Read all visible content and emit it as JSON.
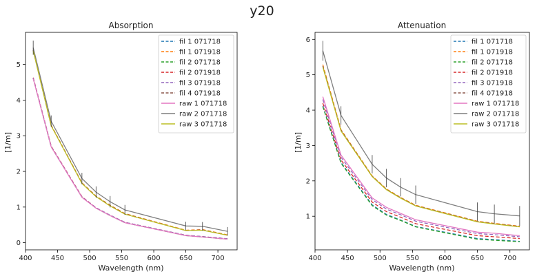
{
  "figure": {
    "title": "y20"
  },
  "legend_labels": [
    "fil 1 071718",
    "fil 1 071918",
    "fil 2 071718",
    "fil 2 071918",
    "fil 3 071918",
    "fil 4 071918",
    "raw 1 071718",
    "raw 2 071718",
    "raw 3 071718"
  ],
  "legend_colors": [
    "#1f77b4",
    "#ff7f0e",
    "#2ca02c",
    "#d62728",
    "#9467bd",
    "#8c564b",
    "#e377c2",
    "#7f7f7f",
    "#bcbd22"
  ],
  "legend_dashed": [
    true,
    true,
    true,
    true,
    true,
    true,
    false,
    false,
    false
  ],
  "chart_data": [
    {
      "type": "line",
      "title": "Absorption",
      "xlabel": "Wavelength (nm)",
      "ylabel": "[1/m]",
      "xlim": [
        400,
        730
      ],
      "ylim": [
        -0.2,
        5.9
      ],
      "xticks": [
        400,
        450,
        500,
        550,
        600,
        650,
        700
      ],
      "yticks": [
        0,
        1,
        2,
        3,
        4,
        5
      ],
      "legend_position": "top-right",
      "x": [
        412,
        440,
        488,
        510,
        532,
        555,
        650,
        676,
        715
      ],
      "series": [
        {
          "name": "fil 1 071718",
          "values": [
            4.62,
            2.7,
            1.28,
            0.98,
            0.77,
            0.57,
            0.21,
            0.17,
            0.11
          ]
        },
        {
          "name": "fil 1 071918",
          "values": [
            5.41,
            3.3,
            1.68,
            1.31,
            1.05,
            0.82,
            0.35,
            0.37,
            0.22
          ]
        },
        {
          "name": "fil 2 071718",
          "values": [
            4.61,
            2.69,
            1.28,
            0.97,
            0.76,
            0.56,
            0.2,
            0.16,
            0.1
          ]
        },
        {
          "name": "fil 2 071918",
          "values": [
            4.63,
            2.71,
            1.29,
            0.98,
            0.77,
            0.57,
            0.21,
            0.17,
            0.11
          ]
        },
        {
          "name": "fil 3 071918",
          "values": [
            4.62,
            2.7,
            1.28,
            0.98,
            0.77,
            0.57,
            0.21,
            0.17,
            0.11
          ]
        },
        {
          "name": "fil 4 071918",
          "values": [
            5.4,
            3.29,
            1.67,
            1.3,
            1.04,
            0.81,
            0.34,
            0.36,
            0.21
          ]
        },
        {
          "name": "raw 1 071718",
          "values": [
            4.6,
            2.69,
            1.27,
            0.97,
            0.76,
            0.56,
            0.2,
            0.16,
            0.1
          ]
        },
        {
          "name": "raw 2 071718",
          "values": [
            5.47,
            3.41,
            1.8,
            1.42,
            1.15,
            0.92,
            0.47,
            0.46,
            0.32
          ]
        },
        {
          "name": "raw 3 071718",
          "values": [
            5.38,
            3.28,
            1.66,
            1.29,
            1.03,
            0.8,
            0.34,
            0.35,
            0.21
          ]
        }
      ],
      "errorbars": {
        "x": [
          412,
          440,
          488,
          510,
          532,
          555,
          650,
          676,
          715
        ],
        "center": [
          5.47,
          3.41,
          1.8,
          1.42,
          1.15,
          0.92,
          0.47,
          0.46,
          0.32
        ],
        "halfwidth": [
          0.2,
          0.16,
          0.16,
          0.16,
          0.16,
          0.14,
          0.12,
          0.12,
          0.12
        ]
      }
    },
    {
      "type": "line",
      "title": "Attenuation",
      "xlabel": "Wavelength (nm)",
      "ylabel": "[1/m]",
      "xlim": [
        400,
        730
      ],
      "ylim": [
        0.05,
        6.2
      ],
      "xticks": [
        400,
        450,
        500,
        550,
        600,
        650,
        700
      ],
      "yticks": [
        1,
        2,
        3,
        4,
        5,
        6
      ],
      "legend_position": "top-right",
      "x": [
        412,
        440,
        488,
        510,
        532,
        555,
        650,
        676,
        715
      ],
      "series": [
        {
          "name": "fil 1 071718",
          "values": [
            4.12,
            2.52,
            1.32,
            1.05,
            0.89,
            0.71,
            0.37,
            0.34,
            0.29
          ]
        },
        {
          "name": "fil 1 071918",
          "values": [
            5.29,
            3.45,
            2.14,
            1.77,
            1.53,
            1.31,
            0.86,
            0.8,
            0.72
          ]
        },
        {
          "name": "fil 2 071718",
          "values": [
            4.1,
            2.5,
            1.3,
            1.03,
            0.88,
            0.7,
            0.35,
            0.32,
            0.28
          ]
        },
        {
          "name": "fil 2 071918",
          "values": [
            4.2,
            2.59,
            1.4,
            1.13,
            0.97,
            0.79,
            0.45,
            0.42,
            0.37
          ]
        },
        {
          "name": "fil 3 071918",
          "values": [
            4.3,
            2.67,
            1.47,
            1.2,
            1.04,
            0.86,
            0.51,
            0.48,
            0.42
          ]
        },
        {
          "name": "fil 4 071918",
          "values": [
            5.25,
            3.43,
            2.13,
            1.76,
            1.52,
            1.3,
            0.85,
            0.79,
            0.71
          ]
        },
        {
          "name": "raw 1 071718",
          "values": [
            4.38,
            2.73,
            1.52,
            1.25,
            1.08,
            0.9,
            0.55,
            0.52,
            0.45
          ]
        },
        {
          "name": "raw 2 071718",
          "values": [
            5.68,
            3.85,
            2.47,
            2.08,
            1.82,
            1.61,
            1.13,
            1.07,
            1.01
          ]
        },
        {
          "name": "raw 3 071718",
          "values": [
            5.22,
            3.41,
            2.12,
            1.75,
            1.51,
            1.29,
            0.84,
            0.78,
            0.7
          ]
        }
      ],
      "errorbars": {
        "x": [
          412,
          440,
          488,
          510,
          532,
          555,
          650,
          676,
          715
        ],
        "center": [
          5.68,
          3.85,
          2.47,
          2.08,
          1.82,
          1.61,
          1.13,
          1.07,
          1.01
        ],
        "halfwidth": [
          0.28,
          0.26,
          0.26,
          0.26,
          0.26,
          0.26,
          0.26,
          0.26,
          0.28
        ]
      }
    }
  ]
}
